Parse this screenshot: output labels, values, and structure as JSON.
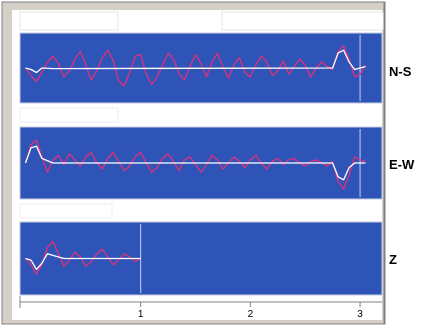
{
  "colors": {
    "panel_bg": "#2e54b8",
    "panel_border": "#c4cbe0",
    "raw_trace": "#e0307a",
    "fit_trace": "#ffffff",
    "marker": "#c8d0f0",
    "frame": "#808080",
    "frame_bg": "#d4d0c8"
  },
  "chart_data": {
    "type": "line",
    "xlim": [
      -0.1,
      3.2
    ],
    "x_ticks": [
      "1",
      "2",
      "3"
    ],
    "panels": [
      {
        "label": "N-S",
        "ylim": [
          -1,
          1
        ],
        "marker_x": 3.0,
        "raw": {
          "x": [
            -0.05,
            0.0,
            0.05,
            0.1,
            0.15,
            0.2,
            0.25,
            0.3,
            0.35,
            0.4,
            0.45,
            0.5,
            0.55,
            0.6,
            0.65,
            0.7,
            0.75,
            0.8,
            0.85,
            0.9,
            0.95,
            1.0,
            1.05,
            1.1,
            1.15,
            1.2,
            1.25,
            1.3,
            1.35,
            1.4,
            1.45,
            1.5,
            1.55,
            1.6,
            1.65,
            1.7,
            1.75,
            1.8,
            1.85,
            1.9,
            1.95,
            2.0,
            2.05,
            2.1,
            2.15,
            2.2,
            2.25,
            2.3,
            2.35,
            2.4,
            2.45,
            2.5,
            2.55,
            2.6,
            2.65,
            2.7,
            2.75,
            2.8,
            2.85,
            2.9,
            2.95,
            3.0,
            3.05
          ],
          "y": [
            0.0,
            -0.25,
            -0.45,
            -0.15,
            0.2,
            0.4,
            0.15,
            -0.3,
            -0.1,
            0.3,
            0.55,
            0.1,
            -0.4,
            -0.1,
            0.35,
            0.6,
            0.25,
            -0.45,
            -0.6,
            -0.15,
            0.4,
            0.45,
            -0.2,
            -0.55,
            -0.3,
            0.1,
            0.5,
            0.3,
            -0.2,
            -0.4,
            0.05,
            0.45,
            0.15,
            -0.3,
            0.2,
            0.5,
            0.05,
            -0.35,
            0.1,
            0.35,
            -0.15,
            -0.3,
            0.1,
            0.4,
            0.2,
            -0.25,
            -0.1,
            0.25,
            -0.2,
            0.05,
            0.3,
            0.1,
            -0.3,
            0.0,
            0.2,
            0.05,
            -0.05,
            0.55,
            0.75,
            0.3,
            -0.3,
            -0.2,
            0.1
          ]
        },
        "fit": {
          "x": [
            -0.05,
            0.0,
            0.05,
            0.1,
            0.2,
            2.75,
            2.8,
            2.85,
            2.9,
            2.95,
            3.0,
            3.05
          ],
          "y": [
            0.0,
            -0.05,
            -0.15,
            0.0,
            -0.02,
            0.0,
            0.5,
            0.6,
            0.2,
            -0.05,
            0.0,
            0.05
          ]
        }
      },
      {
        "label": "E-W",
        "ylim": [
          -1,
          1
        ],
        "marker_x": 3.0,
        "raw": {
          "x": [
            -0.05,
            0.0,
            0.05,
            0.1,
            0.15,
            0.2,
            0.25,
            0.3,
            0.35,
            0.4,
            0.45,
            0.5,
            0.55,
            0.6,
            0.65,
            0.7,
            0.75,
            0.8,
            0.85,
            0.9,
            0.95,
            1.0,
            1.05,
            1.1,
            1.15,
            1.2,
            1.25,
            1.3,
            1.35,
            1.4,
            1.45,
            1.5,
            1.55,
            1.6,
            1.65,
            1.7,
            1.75,
            1.8,
            1.85,
            1.9,
            1.95,
            2.0,
            2.05,
            2.1,
            2.15,
            2.2,
            2.25,
            2.3,
            2.35,
            2.4,
            2.45,
            2.5,
            2.55,
            2.6,
            2.65,
            2.7,
            2.75,
            2.8,
            2.85,
            2.9,
            2.95,
            3.0,
            3.05
          ],
          "y": [
            0.0,
            0.6,
            0.75,
            0.2,
            -0.3,
            0.1,
            0.25,
            -0.05,
            0.3,
            0.1,
            -0.1,
            0.2,
            0.35,
            0.0,
            -0.2,
            0.15,
            0.35,
            0.05,
            -0.25,
            -0.1,
            0.2,
            0.35,
            0.0,
            -0.3,
            -0.15,
            0.15,
            0.3,
            0.05,
            -0.25,
            0.1,
            0.2,
            -0.05,
            -0.3,
            -0.05,
            0.25,
            0.1,
            -0.2,
            0.0,
            0.2,
            0.05,
            -0.15,
            0.1,
            0.25,
            0.0,
            -0.2,
            0.05,
            0.15,
            -0.05,
            0.1,
            0.15,
            0.0,
            -0.1,
            0.05,
            0.1,
            0.0,
            -0.1,
            0.05,
            -0.6,
            -0.85,
            -0.4,
            0.2,
            0.1,
            0.05
          ]
        },
        "fit": {
          "x": [
            -0.05,
            0.0,
            0.05,
            0.1,
            0.2,
            2.75,
            2.8,
            2.85,
            2.9,
            2.95,
            3.0,
            3.05
          ],
          "y": [
            0.0,
            0.5,
            0.55,
            0.15,
            0.0,
            0.0,
            -0.45,
            -0.55,
            -0.15,
            0.0,
            0.0,
            0.0
          ]
        }
      },
      {
        "label": "Z",
        "ylim": [
          -1,
          1
        ],
        "marker_x": 1.0,
        "raw": {
          "x": [
            -0.05,
            0.0,
            0.05,
            0.1,
            0.15,
            0.2,
            0.25,
            0.3,
            0.35,
            0.4,
            0.45,
            0.5,
            0.55,
            0.6,
            0.65,
            0.7,
            0.75,
            0.8,
            0.85,
            0.9,
            0.95,
            1.0
          ],
          "y": [
            0.0,
            -0.2,
            -0.5,
            -0.2,
            0.35,
            0.55,
            0.15,
            -0.25,
            -0.05,
            0.2,
            0.05,
            -0.25,
            -0.1,
            0.15,
            0.3,
            0.05,
            -0.2,
            -0.05,
            0.15,
            0.05,
            -0.1,
            0.0
          ]
        },
        "fit": {
          "x": [
            -0.05,
            0.0,
            0.05,
            0.1,
            0.15,
            0.2,
            0.3,
            1.0
          ],
          "y": [
            0.0,
            -0.05,
            -0.35,
            -0.15,
            0.15,
            0.1,
            0.0,
            0.0
          ]
        }
      }
    ]
  }
}
